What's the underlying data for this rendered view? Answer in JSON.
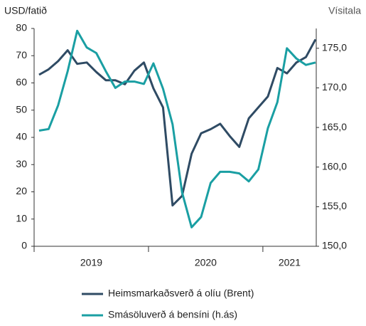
{
  "chart_data": {
    "type": "line",
    "y_axis_title": "USD/fatið",
    "y2_axis_title": "Vísitala",
    "categories": [
      null,
      null,
      null,
      null,
      null,
      null,
      null,
      null,
      null,
      null,
      null,
      null,
      null,
      null,
      null,
      null,
      null,
      null,
      null,
      null,
      null,
      null,
      null,
      null,
      null,
      null,
      null,
      null,
      null,
      null
    ],
    "year_labels": [
      "2019",
      "2020",
      "2021"
    ],
    "ylim": [
      0,
      80
    ],
    "yticks": [
      0,
      10,
      20,
      30,
      40,
      50,
      60,
      70,
      80
    ],
    "y2lim": [
      150,
      177.5
    ],
    "y2ticks": [
      {
        "value": 150,
        "label": "150,0"
      },
      {
        "value": 155,
        "label": "155,0"
      },
      {
        "value": 160,
        "label": "160,0"
      },
      {
        "value": 165,
        "label": "165,0"
      },
      {
        "value": 170,
        "label": "170,0"
      },
      {
        "value": 175,
        "label": "175,0"
      }
    ],
    "grid": false,
    "series": [
      {
        "name": "Heimsmarkaðsverð á olíu (Brent)",
        "color": "#2f4b64",
        "values": [
          63,
          65,
          68,
          72,
          67,
          67.5,
          64,
          61,
          61,
          59.5,
          64.5,
          67.5,
          58,
          51,
          15,
          18.5,
          34,
          41.5,
          43,
          45,
          40.5,
          36.5,
          47,
          51,
          55,
          65.5,
          63.5,
          67.5,
          69.5,
          76
        ]
      },
      {
        "name": "Smásöluverð á bensíni (h.ás)",
        "color": "#1a9fa3",
        "axis": "y2",
        "values": [
          164.6,
          164.8,
          167.8,
          172.1,
          177.2,
          175.1,
          174.4,
          172.1,
          170.0,
          170.8,
          170.8,
          170.5,
          173.1,
          169.9,
          165.4,
          156.8,
          152.4,
          153.7,
          158.0,
          159.4,
          159.4,
          159.2,
          158.2,
          159.7,
          164.9,
          168.2,
          175.0,
          173.7,
          172.9,
          173.2
        ]
      }
    ]
  }
}
